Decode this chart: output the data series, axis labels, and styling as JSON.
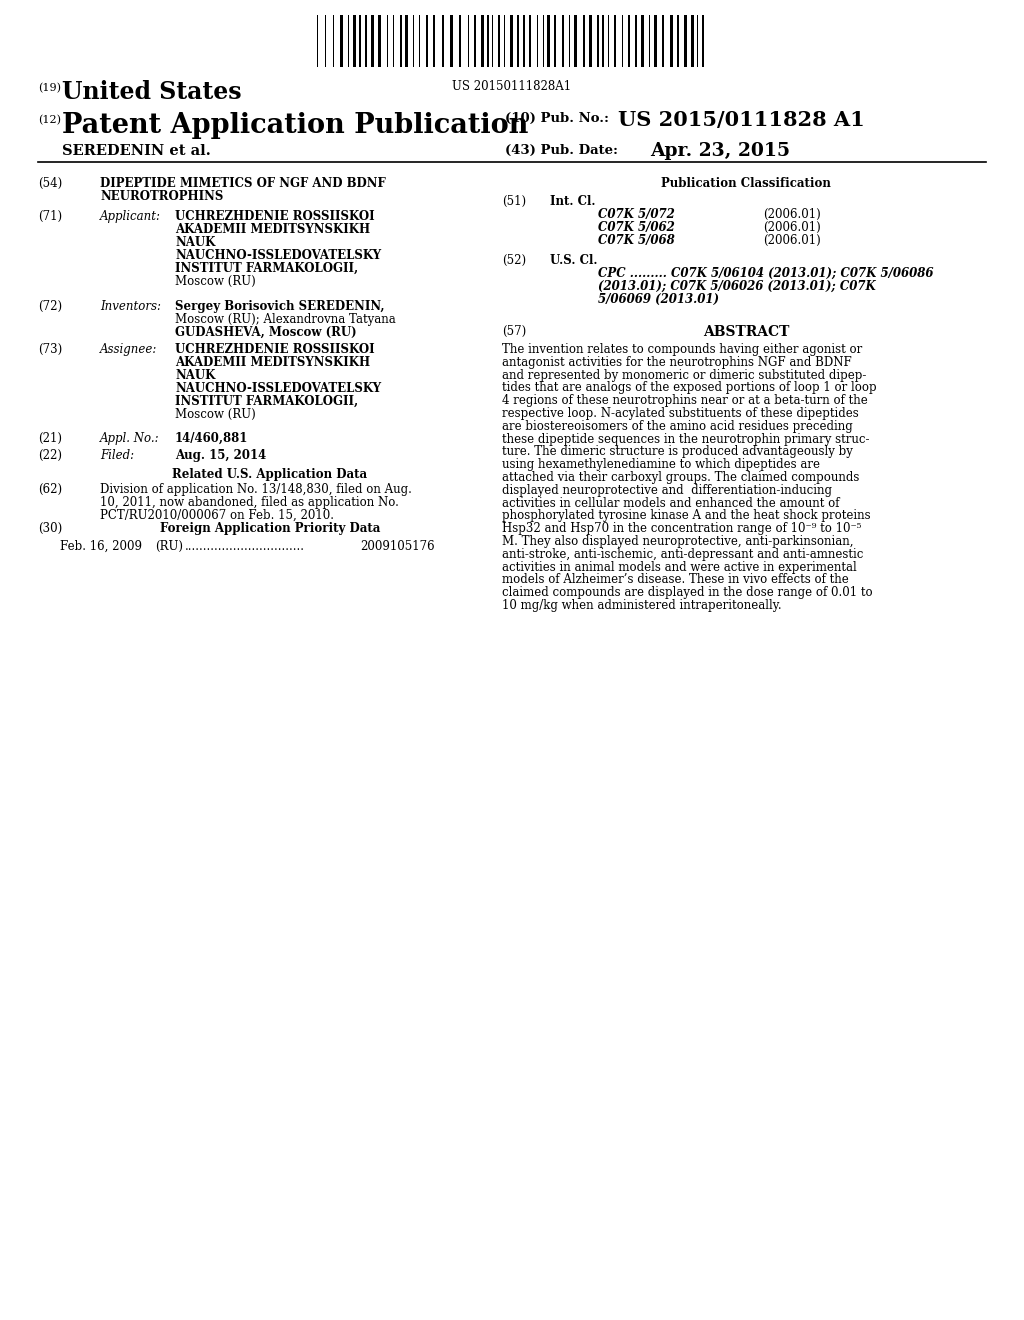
{
  "background_color": "#ffffff",
  "barcode_text": "US 20150111828A1",
  "title_19": "(19)",
  "title_19_text": "United States",
  "title_12": "(12)",
  "title_12_text": "Patent Application Publication",
  "title_10": "(10) Pub. No.:",
  "pub_no": "US 2015/0111828 A1",
  "author_line": "SEREDENIN et al.",
  "pub_date_label": "(43) Pub. Date:",
  "pub_date": "Apr. 23, 2015",
  "field54_label": "(54)",
  "field54_line1": "DIPEPTIDE MIMETICS OF NGF AND BDNF",
  "field54_line2": "NEUROTROPHINS",
  "field71_label": "(71)",
  "field71_key": "Applicant:",
  "field71_val": [
    "UCHREZHDENIE ROSSIISKOI",
    "AKADEMII MEDITSYNSKIKH",
    "NAUK",
    "NAUCHNO-ISSLEDOVATELSKY",
    "INSTITUT FARMAKOLOGII,",
    "Moscow (RU)"
  ],
  "field71_bold": [
    true,
    true,
    true,
    true,
    true,
    false
  ],
  "field72_label": "(72)",
  "field72_key": "Inventors:",
  "field72_val": [
    "Sergey Borisovich SEREDENIN,",
    "Moscow (RU); Alexandrovna Tatyana",
    "GUDASHEVA, Moscow (RU)"
  ],
  "field72_bold": [
    true,
    false,
    true
  ],
  "field73_label": "(73)",
  "field73_key": "Assignee:",
  "field73_val": [
    "UCHREZHDENIE ROSSIISKOI",
    "AKADEMII MEDITSYNSKIKH",
    "NAUK",
    "NAUCHNO-ISSLEDOVATELSKY",
    "INSTITUT FARMAKOLOGII,",
    "Moscow (RU)"
  ],
  "field73_bold": [
    true,
    true,
    true,
    true,
    true,
    false
  ],
  "field21_label": "(21)",
  "field21_key": "Appl. No.:",
  "field21_val": "14/460,881",
  "field22_label": "(22)",
  "field22_key": "Filed:",
  "field22_val": "Aug. 15, 2014",
  "related_heading": "Related U.S. Application Data",
  "field62_label": "(62)",
  "field62_val": [
    "Division of application No. 13/148,830, filed on Aug.",
    "10, 2011, now abandoned, filed as application No.",
    "PCT/RU2010/000067 on Feb. 15, 2010."
  ],
  "field30_label": "(30)",
  "field30_key": "Foreign Application Priority Data",
  "field30_date": "Feb. 16, 2009",
  "field30_country": "(RU)",
  "field30_dots": "................................",
  "field30_num": "2009105176",
  "pub_class_heading": "Publication Classification",
  "field51_label": "(51)",
  "field51_key": "Int. Cl.",
  "int_cl_entries": [
    [
      "C07K 5/072",
      "(2006.01)"
    ],
    [
      "C07K 5/062",
      "(2006.01)"
    ],
    [
      "C07K 5/068",
      "(2006.01)"
    ]
  ],
  "field52_label": "(52)",
  "field52_key": "U.S. Cl.",
  "us_cl_lines": [
    "CPC ......... C07K 5/06104 (2013.01); C07K 5/06086",
    "(2013.01); C07K 5/06026 (2013.01); C07K",
    "5/06069 (2013.01)"
  ],
  "field57_label": "(57)",
  "field57_key": "ABSTRACT",
  "abstract_lines": [
    "The invention relates to compounds having either agonist or",
    "antagonist activities for the neurotrophins NGF and BDNF",
    "and represented by monomeric or dimeric substituted dipep-",
    "tides that are analogs of the exposed portions of loop 1 or loop",
    "4 regions of these neurotrophins near or at a beta-turn of the",
    "respective loop. N-acylated substituents of these dipeptides",
    "are biostereoisomers of the amino acid residues preceding",
    "these dipeptide sequences in the neurotrophin primary struc-",
    "ture. The dimeric structure is produced advantageously by",
    "using hexamethylenediamine to which dipeptides are",
    "attached via their carboxyl groups. The claimed compounds",
    "displayed neuroprotective and  differentiation-inducing",
    "activities in cellular models and enhanced the amount of",
    "phosphorylated tyrosine kinase A and the heat shock proteins",
    "Hsp32 and Hsp70 in the concentration range of 10⁻⁹ to 10⁻⁵",
    "M. They also displayed neuroprotective, anti-parkinsonian,",
    "anti-stroke, anti-ischemic, anti-depressant and anti-amnestic",
    "activities in animal models and were active in experimental",
    "models of Alzheimer’s disease. These in vivo effects of the",
    "claimed compounds are displayed in the dose range of 0.01 to",
    "10 mg/kg when administered intraperitoneally."
  ]
}
